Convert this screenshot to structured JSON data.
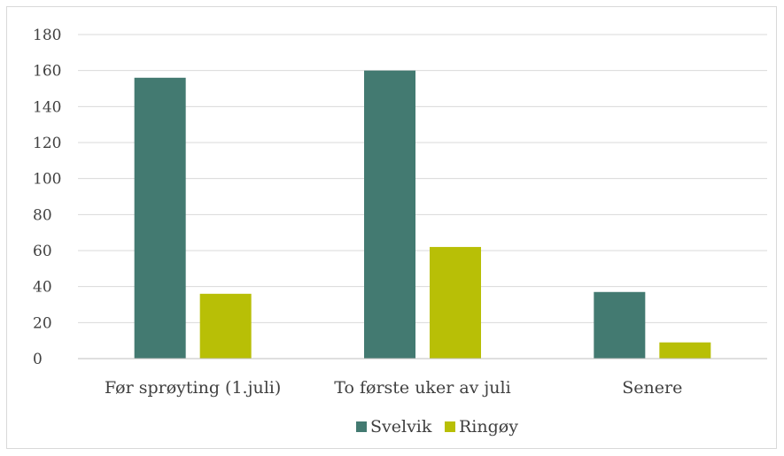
{
  "chart_data": {
    "type": "bar",
    "title": "",
    "xlabel": "",
    "ylabel": "",
    "categories": [
      "Før sprøyting (1.juli)",
      "To første uker av juli",
      "Senere"
    ],
    "series": [
      {
        "name": "Svelvik",
        "color": "#437a71",
        "values": [
          156,
          160,
          37
        ]
      },
      {
        "name": "Ringøy",
        "color": "#b8bf06",
        "values": [
          36,
          62,
          9
        ]
      }
    ],
    "ylim": [
      0,
      180
    ],
    "yticks": [
      "0",
      "20",
      "40",
      "60",
      "80",
      "100",
      "120",
      "140",
      "160",
      "180"
    ],
    "grid": true,
    "legend_position": "bottom",
    "gridline_color": "#d9d9d9",
    "axis_color": "#bfbfbf"
  }
}
